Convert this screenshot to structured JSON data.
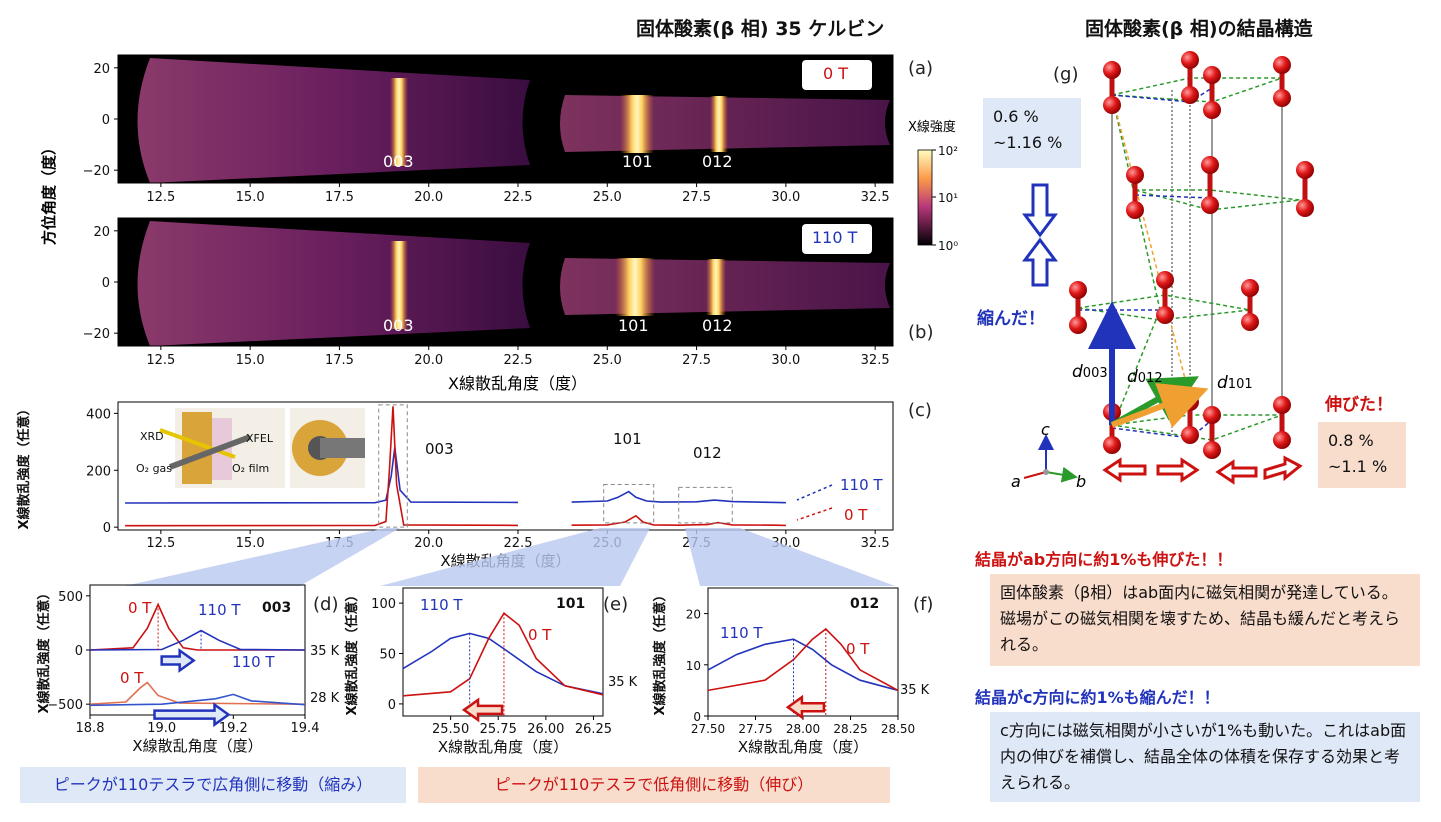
{
  "header": {
    "left_title": "固体酸素(β 相) 35 ケルビン",
    "right_title": "固体酸素(β 相)の結晶構造"
  },
  "panel_letters": {
    "a": "(a)",
    "b": "(b)",
    "c": "(c)",
    "d": "(d)",
    "e": "(e)",
    "f": "(f)",
    "g": "(g)"
  },
  "colors": {
    "blue": "#2233bb",
    "red": "#cc1111",
    "orange": "#f0a030",
    "green": "#2a9a2a"
  },
  "detector": {
    "ylabel": "方位角度（度）",
    "xlabel": "X線散乱角度（度）",
    "xticks": [
      "12.5",
      "15.0",
      "17.5",
      "20.0",
      "22.5",
      "25.0",
      "27.5",
      "30.0",
      "32.5"
    ],
    "yticks": [
      "20",
      "0",
      "−20"
    ],
    "colorbar_label": "X線強度",
    "colorbar_ticks": [
      "10²",
      "10¹",
      "10⁰"
    ],
    "panel_a": {
      "field": "0 T",
      "peaks": [
        "003",
        "101",
        "012"
      ]
    },
    "panel_b": {
      "field": "110 T",
      "peaks": [
        "003",
        "101",
        "012"
      ]
    }
  },
  "chart_data": [
    {
      "type": "line",
      "panel": "c",
      "ylabel": "X線散乱強度（任意）",
      "xlabel": "X線散乱角度（度）",
      "xlim": [
        11.3,
        33.0
      ],
      "ylim": [
        -10,
        440
      ],
      "xticks": [
        "12.5",
        "15.0",
        "17.5",
        "20.0",
        "22.5",
        "25.0",
        "27.5",
        "30.0",
        "32.5"
      ],
      "yticks": [
        "0",
        "200",
        "400"
      ],
      "peak_labels": [
        "003",
        "101",
        "012"
      ],
      "inset_labels": [
        "XRD",
        "XFEL",
        "O₂ gas",
        "O₂ film"
      ],
      "series": [
        {
          "name": "110 T",
          "x": [
            11.5,
            18.5,
            18.8,
            18.95,
            19.05,
            19.2,
            19.5,
            22.5,
            23.5,
            24.0,
            25.0,
            25.3,
            25.6,
            25.8,
            26.1,
            26.5,
            27.5,
            28.0,
            28.5,
            29.7,
            30.0
          ],
          "y": [
            85,
            86,
            95,
            180,
            280,
            130,
            88,
            87,
            null,
            88,
            92,
            105,
            125,
            105,
            92,
            88,
            89,
            95,
            90,
            87,
            86
          ]
        },
        {
          "name": "0 T",
          "x": [
            11.5,
            18.5,
            18.8,
            18.9,
            19.0,
            19.1,
            19.3,
            22.5,
            23.5,
            24.0,
            25.0,
            25.5,
            25.8,
            26.0,
            26.3,
            27.0,
            27.8,
            28.1,
            28.5,
            29.7,
            30.0
          ],
          "y": [
            5,
            6,
            20,
            200,
            425,
            150,
            8,
            6,
            null,
            7,
            8,
            18,
            40,
            18,
            8,
            7,
            9,
            16,
            8,
            7,
            6
          ]
        }
      ]
    },
    {
      "type": "line",
      "panel": "d",
      "ylabel": "X線散乱強度（任意）",
      "xlabel": "X線散乱角度（度）",
      "xlim": [
        18.8,
        19.4
      ],
      "ylim": [
        -600,
        600
      ],
      "xticks": [
        "18.8",
        "19.0",
        "19.2",
        "19.4"
      ],
      "yticks": [
        "500",
        "0",
        "−500"
      ],
      "peak_label": "003",
      "temps": [
        "35 K",
        "28 K"
      ],
      "series": [
        {
          "name": "0 T",
          "temp": "35 K",
          "x": [
            18.8,
            18.92,
            18.96,
            18.99,
            19.02,
            19.06,
            19.1,
            19.4
          ],
          "y": [
            0,
            20,
            200,
            420,
            200,
            20,
            0,
            0
          ]
        },
        {
          "name": "110 T",
          "temp": "35 K",
          "x": [
            18.8,
            19.0,
            19.06,
            19.11,
            19.16,
            19.22,
            19.4
          ],
          "y": [
            0,
            5,
            90,
            180,
            90,
            5,
            0
          ]
        },
        {
          "name": "0 T",
          "temp": "28 K",
          "x": [
            18.8,
            18.9,
            18.94,
            18.96,
            18.99,
            19.05,
            19.4
          ],
          "y": [
            -500,
            -480,
            -350,
            -300,
            -420,
            -490,
            -500
          ]
        },
        {
          "name": "110 T",
          "temp": "28 K",
          "x": [
            18.8,
            19.0,
            19.15,
            19.2,
            19.25,
            19.4
          ],
          "y": [
            -510,
            -500,
            -450,
            -410,
            -470,
            -505
          ]
        }
      ]
    },
    {
      "type": "line",
      "panel": "e",
      "ylabel": "X線散乱強度（任意）",
      "xlabel": "X線散乱角度（度）",
      "xlim": [
        25.25,
        26.3
      ],
      "ylim": [
        -12,
        115
      ],
      "xticks": [
        "25.50",
        "25.75",
        "26.00",
        "26.25"
      ],
      "yticks": [
        "0",
        "50",
        "100"
      ],
      "peak_label": "101",
      "temp": "35 K",
      "series": [
        {
          "name": "110 T",
          "x": [
            25.25,
            25.4,
            25.5,
            25.6,
            25.7,
            25.8,
            25.95,
            26.1,
            26.3
          ],
          "y": [
            35,
            52,
            65,
            70,
            65,
            52,
            32,
            18,
            10
          ]
        },
        {
          "name": "0 T",
          "x": [
            25.25,
            25.5,
            25.6,
            25.7,
            25.78,
            25.86,
            25.95,
            26.1,
            26.3
          ],
          "y": [
            8,
            12,
            25,
            65,
            90,
            78,
            45,
            18,
            9
          ]
        }
      ]
    },
    {
      "type": "line",
      "panel": "f",
      "ylabel": "X線散乱強度（任意）",
      "xlabel": "X線散乱角度（度）",
      "xlim": [
        27.5,
        28.5
      ],
      "ylim": [
        0,
        25
      ],
      "xticks": [
        "27.50",
        "27.75",
        "28.00",
        "28.25",
        "28.50"
      ],
      "yticks": [
        "0",
        "10",
        "20"
      ],
      "peak_label": "012",
      "temp": "35 K",
      "series": [
        {
          "name": "110 T",
          "x": [
            27.5,
            27.65,
            27.8,
            27.95,
            28.05,
            28.15,
            28.3,
            28.5
          ],
          "y": [
            9,
            12,
            14,
            15,
            13,
            10,
            7,
            5
          ]
        },
        {
          "name": "0 T",
          "x": [
            27.5,
            27.8,
            27.95,
            28.05,
            28.12,
            28.2,
            28.3,
            28.5
          ],
          "y": [
            5,
            7,
            11,
            15,
            17,
            14,
            9,
            5
          ]
        }
      ]
    }
  ],
  "structure": {
    "labels": {
      "d003": "d",
      "d003_sub": "003",
      "d012": "d",
      "d012_sub": "012",
      "d101": "d",
      "d101_sub": "101",
      "axis_c": "c",
      "axis_a": "a",
      "axis_b": "b"
    },
    "shrink_text": "縮んだ！",
    "shrink_value": "0.6 %\n~1.16 %",
    "stretch_text": "伸びた！",
    "stretch_value": "0.8 %\n~1.1 %"
  },
  "captions": {
    "left": "ピークが110テスラで広角側に移動（縮み）",
    "mid": "ピークが110テスラで低角側に移動（伸び）",
    "ab_heading": "結晶がab方向に約1%も伸びた！！",
    "ab_body": "固体酸素（β相）はab面内に磁気相関が発達している。磁場がこの磁気相関を壊すため、結晶も緩んだと考えられる。",
    "c_heading": "結晶がc方向に約1%も縮んだ！！",
    "c_body": "c方向には磁気相関が小さいが1%も動いた。これはab面内の伸びを補償し、結晶全体の体積を保存する効果と考えられる。"
  }
}
